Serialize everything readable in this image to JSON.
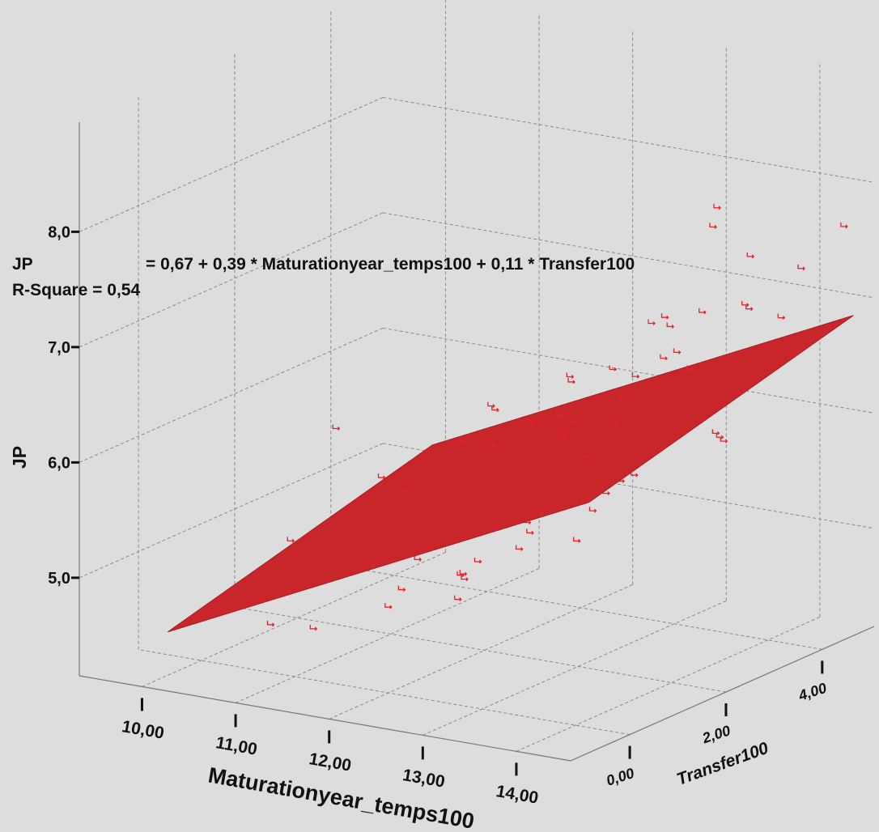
{
  "chart_data": {
    "type": "scatter3d",
    "annotations": {
      "equation_lhs": "JP",
      "equation_rhs": "= 0,67 + 0,39 * Maturationyear_temps100 + 0,11 * Transfer100",
      "r_square": "R-Square = 0,54"
    },
    "fit": {
      "intercept": 0.67,
      "x_coef": 0.39,
      "y_coef": 0.11
    },
    "x_label": "Maturationyear_temps100",
    "y_label": "Transfer100",
    "z_label": "JP",
    "xlim": [
      9.33,
      14.58
    ],
    "ylim": [
      -1.23,
      5.08
    ],
    "zlim": [
      4.15,
      8.95
    ],
    "xticks": [
      {
        "value": 10,
        "label": "10,00"
      },
      {
        "value": 11,
        "label": "11,00"
      },
      {
        "value": 12,
        "label": "12,00"
      },
      {
        "value": 13,
        "label": "13,00"
      },
      {
        "value": 14,
        "label": "14,00"
      }
    ],
    "yticks": [
      {
        "value": 0,
        "label": "0,00"
      },
      {
        "value": 2,
        "label": "2,00"
      },
      {
        "value": 4,
        "label": "4,00"
      }
    ],
    "zticks": [
      {
        "value": 5,
        "label": "5,0"
      },
      {
        "value": 6,
        "label": "6,0"
      },
      {
        "value": 7,
        "label": "7,0"
      },
      {
        "value": 8,
        "label": "8,0"
      }
    ],
    "color": "#e8202a",
    "plane_color": "#c9262c",
    "grid": true,
    "points": {
      "x": [
        9.9,
        10.7,
        10.9,
        11.0,
        11.3,
        11.2,
        11.5,
        11.8,
        11.9,
        12.0,
        12.1,
        12.2,
        12.3,
        12.4,
        12.5,
        12.0,
        12.2,
        12.6,
        12.7,
        12.8,
        12.9,
        13.0,
        13.1,
        13.2,
        13.3,
        13.4,
        13.5,
        12.6,
        12.9,
        13.0,
        13.2,
        13.4,
        13.6,
        13.8,
        13.9,
        14.0,
        14.1,
        14.2,
        14.3,
        14.4,
        11.6,
        11.9,
        12.3,
        12.5,
        12.8,
        13.1,
        13.3,
        13.6,
        13.7,
        14.0,
        12.4,
        12.7,
        13.0,
        13.3,
        13.5,
        13.8,
        14.1,
        14.3,
        12.9,
        13.2
      ],
      "y": [
        3.0,
        0.5,
        2.0,
        -0.5,
        3.5,
        0.0,
        2.5,
        1.0,
        4.0,
        0.0,
        2.0,
        3.0,
        1.0,
        -0.5,
        4.5,
        1.5,
        2.5,
        3.5,
        0.5,
        2.0,
        4.0,
        1.0,
        3.0,
        2.5,
        5.0,
        0.0,
        4.5,
        1.0,
        2.5,
        3.5,
        1.5,
        3.0,
        2.0,
        4.0,
        1.0,
        3.0,
        4.5,
        2.0,
        5.0,
        3.5,
        3.0,
        0.5,
        4.0,
        2.0,
        0.0,
        1.5,
        2.0,
        0.5,
        3.5,
        1.0,
        3.0,
        4.5,
        -0.5,
        4.0,
        1.0,
        2.5,
        0.0,
        2.5,
        5.0,
        4.5
      ],
      "z": [
        5.6,
        5.2,
        5.5,
        4.7,
        5.9,
        4.6,
        5.8,
        5.1,
        6.1,
        4.9,
        5.3,
        6.0,
        5.0,
        5.2,
        6.6,
        4.9,
        5.2,
        6.4,
        5.3,
        6.3,
        6.8,
        5.5,
        6.5,
        5.7,
        7.2,
        5.6,
        6.9,
        6.2,
        5.4,
        5.8,
        6.4,
        6.7,
        5.9,
        7.0,
        6.6,
        6.1,
        7.3,
        6.9,
        7.6,
        7.1,
        6.0,
        5.8,
        5.6,
        6.2,
        5.3,
        6.3,
        5.7,
        6.5,
        6.0,
        6.8,
        6.4,
        6.6,
        5.2,
        6.9,
        5.5,
        6.9,
        6.5,
        6.2,
        7.4,
        7.7
      ]
    }
  }
}
